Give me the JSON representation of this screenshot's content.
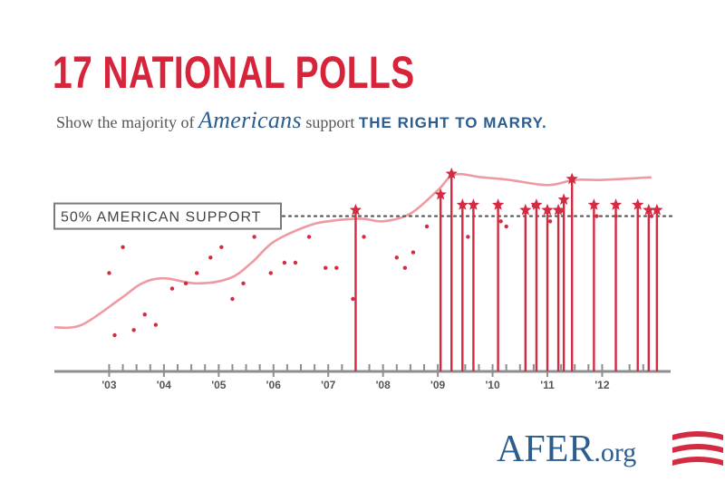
{
  "colors": {
    "title": "#d6243a",
    "accent_blue": "#2c5d8f",
    "subtitle_gray": "#555555",
    "stem_red": "#d22b42",
    "trend_pink": "#ef9aa2",
    "axis_gray": "#8e8e8e",
    "label_gray": "#555555"
  },
  "header": {
    "title": "17 NATIONAL POLLS",
    "subtitle_pre": "Show the majority of",
    "subtitle_script": "Americans",
    "subtitle_mid": "support",
    "subtitle_bold": "THE RIGHT TO MARRY."
  },
  "chart_data": {
    "type": "scatter",
    "x_axis": {
      "min": 2002.0,
      "max": 2013.25,
      "tick_labels": [
        "'03",
        "'04",
        "'05",
        "'06",
        "'07",
        "'08",
        "'09",
        "'10",
        "'11",
        "'12"
      ]
    },
    "y_axis": {
      "min": 20,
      "max": 62,
      "visible": false
    },
    "reference_line": {
      "value": 50,
      "label": "50% AMERICAN SUPPORT"
    },
    "series": [
      {
        "name": "",
        "marker": "dot",
        "points": [
          {
            "x": 2003.0,
            "y": 39
          },
          {
            "x": 2003.1,
            "y": 27
          },
          {
            "x": 2003.25,
            "y": 44
          },
          {
            "x": 2003.45,
            "y": 28
          },
          {
            "x": 2003.65,
            "y": 31
          },
          {
            "x": 2003.85,
            "y": 29
          },
          {
            "x": 2004.15,
            "y": 36
          },
          {
            "x": 2004.4,
            "y": 37
          },
          {
            "x": 2004.6,
            "y": 39
          },
          {
            "x": 2004.85,
            "y": 42
          },
          {
            "x": 2005.05,
            "y": 44
          },
          {
            "x": 2005.25,
            "y": 34
          },
          {
            "x": 2005.45,
            "y": 37
          },
          {
            "x": 2005.65,
            "y": 46
          },
          {
            "x": 2005.95,
            "y": 39
          },
          {
            "x": 2006.2,
            "y": 41
          },
          {
            "x": 2006.4,
            "y": 41
          },
          {
            "x": 2006.65,
            "y": 46
          },
          {
            "x": 2006.95,
            "y": 40
          },
          {
            "x": 2007.15,
            "y": 40
          },
          {
            "x": 2007.45,
            "y": 34
          },
          {
            "x": 2007.65,
            "y": 46
          },
          {
            "x": 2008.25,
            "y": 42
          },
          {
            "x": 2008.4,
            "y": 40
          },
          {
            "x": 2008.55,
            "y": 43
          },
          {
            "x": 2008.8,
            "y": 48
          },
          {
            "x": 2009.55,
            "y": 46
          },
          {
            "x": 2010.15,
            "y": 49
          },
          {
            "x": 2010.25,
            "y": 48
          },
          {
            "x": 2010.75,
            "y": 52
          },
          {
            "x": 2011.05,
            "y": 49
          },
          {
            "x": 2011.25,
            "y": 51
          },
          {
            "x": 2011.9,
            "y": 50
          },
          {
            "x": 2012.25,
            "y": 50
          },
          {
            "x": 2012.9,
            "y": 50
          }
        ]
      },
      {
        "name": "",
        "marker": "star-with-stem",
        "points": [
          {
            "x": 2007.5,
            "y": 51
          },
          {
            "x": 2009.05,
            "y": 54
          },
          {
            "x": 2009.25,
            "y": 58
          },
          {
            "x": 2009.45,
            "y": 52
          },
          {
            "x": 2009.65,
            "y": 52
          },
          {
            "x": 2010.1,
            "y": 52
          },
          {
            "x": 2010.6,
            "y": 51
          },
          {
            "x": 2010.8,
            "y": 52
          },
          {
            "x": 2011.0,
            "y": 51
          },
          {
            "x": 2011.2,
            "y": 51
          },
          {
            "x": 2011.3,
            "y": 53
          },
          {
            "x": 2011.45,
            "y": 57
          },
          {
            "x": 2011.85,
            "y": 52
          },
          {
            "x": 2012.25,
            "y": 52
          },
          {
            "x": 2012.65,
            "y": 52
          },
          {
            "x": 2012.85,
            "y": 51
          },
          {
            "x": 2013.0,
            "y": 51
          }
        ]
      },
      {
        "name": "",
        "marker": "line",
        "points": [
          {
            "x": 2002.0,
            "y": 28.5
          },
          {
            "x": 2002.5,
            "y": 29
          },
          {
            "x": 2003.2,
            "y": 34
          },
          {
            "x": 2003.6,
            "y": 37
          },
          {
            "x": 2004.0,
            "y": 38
          },
          {
            "x": 2004.6,
            "y": 37
          },
          {
            "x": 2005.2,
            "y": 38
          },
          {
            "x": 2005.6,
            "y": 41
          },
          {
            "x": 2006.0,
            "y": 45
          },
          {
            "x": 2006.6,
            "y": 48
          },
          {
            "x": 2007.0,
            "y": 49
          },
          {
            "x": 2007.6,
            "y": 49.5
          },
          {
            "x": 2008.0,
            "y": 49
          },
          {
            "x": 2008.5,
            "y": 50.5
          },
          {
            "x": 2009.0,
            "y": 55
          },
          {
            "x": 2009.3,
            "y": 58
          },
          {
            "x": 2009.8,
            "y": 57.5
          },
          {
            "x": 2010.3,
            "y": 57
          },
          {
            "x": 2011.0,
            "y": 56
          },
          {
            "x": 2011.5,
            "y": 57
          },
          {
            "x": 2012.0,
            "y": 57
          },
          {
            "x": 2012.9,
            "y": 57.5
          }
        ]
      }
    ]
  },
  "brand": {
    "logo_main": "AFER",
    "logo_suffix": ".org"
  }
}
